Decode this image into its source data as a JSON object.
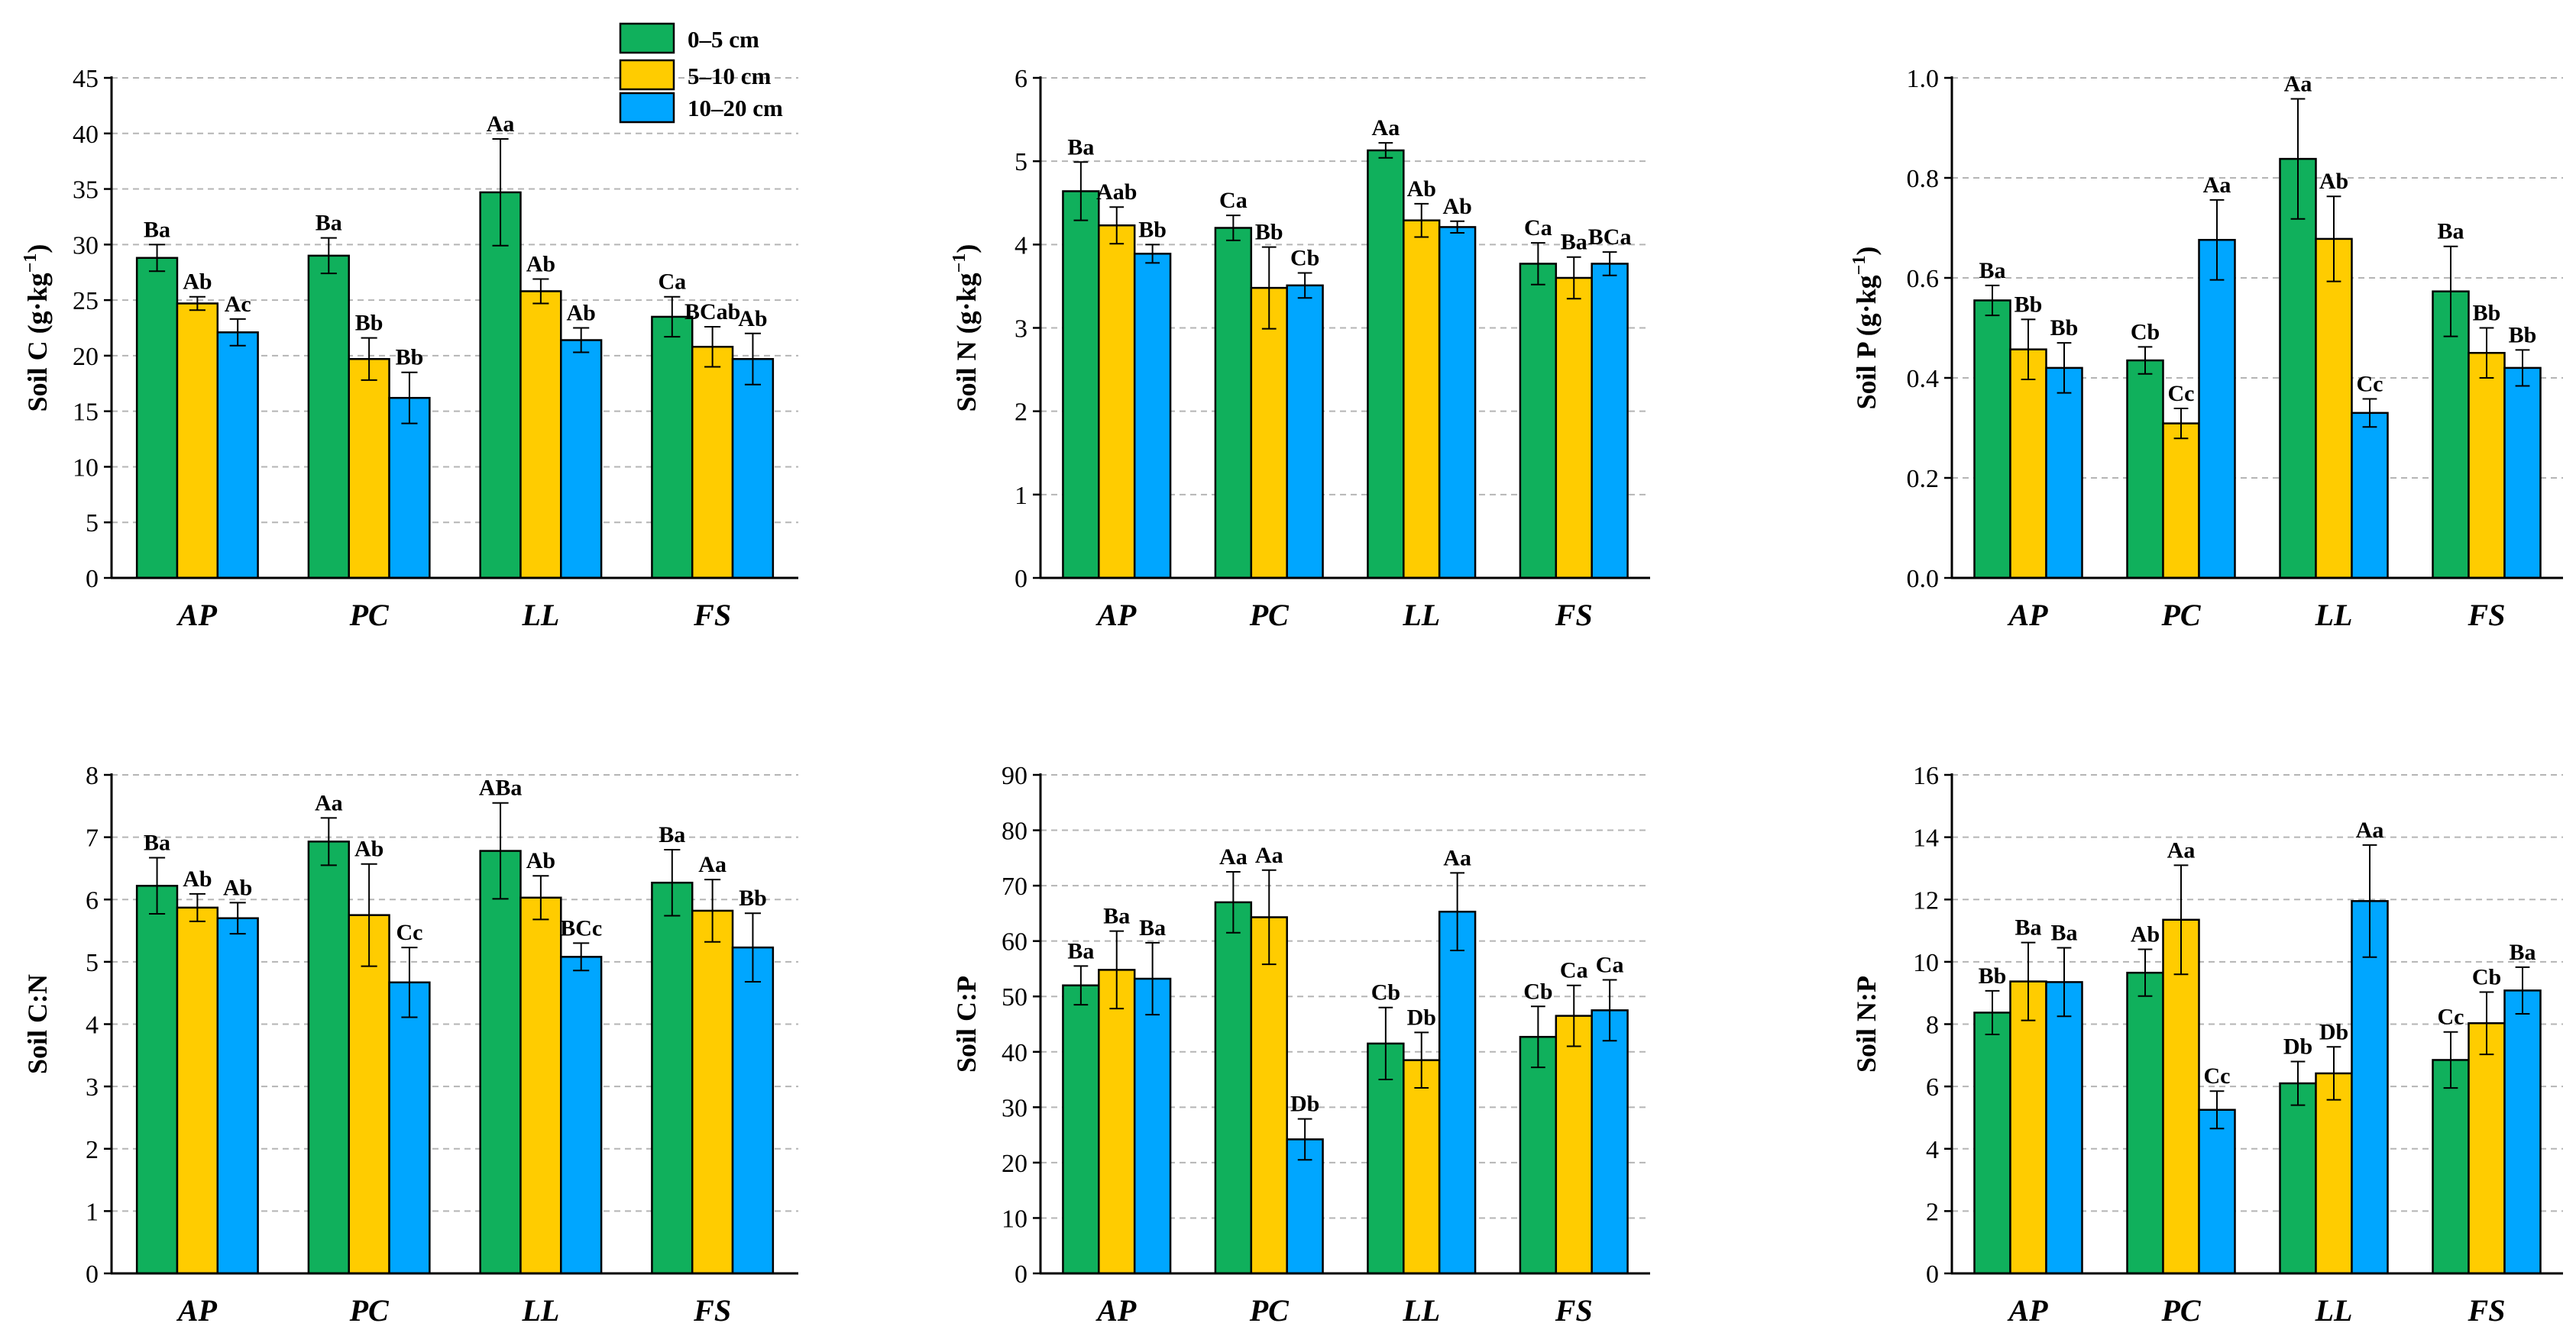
{
  "legend": [
    {
      "label": "0–5 cm",
      "color": "#10B05C"
    },
    {
      "label": "5–10 cm",
      "color": "#FFCC00"
    },
    {
      "label": "10–20 cm",
      "color": "#00A6FF"
    }
  ],
  "chart_data": [
    {
      "type": "bar",
      "ylabel_main": "Soil C (g·kg",
      "ylabel_sup": "−1",
      "ylabel_end": ")",
      "categories": [
        "AP",
        "PC",
        "LL",
        "FS"
      ],
      "ylim": [
        0,
        45
      ],
      "yticks": [
        0,
        5,
        10,
        15,
        20,
        25,
        30,
        35,
        40,
        45
      ],
      "tick_labels": [
        "0",
        "5",
        "10",
        "15",
        "20",
        "25",
        "30",
        "35",
        "40",
        "45"
      ],
      "series": [
        {
          "name": "0–5 cm",
          "values": [
            28.8,
            29.0,
            34.7,
            23.5
          ],
          "errors": [
            1.2,
            1.6,
            4.8,
            1.8
          ],
          "labels": [
            "Ba",
            "Ba",
            "Aa",
            "Ca"
          ]
        },
        {
          "name": "5–10 cm",
          "values": [
            24.7,
            19.7,
            25.8,
            20.8
          ],
          "errors": [
            0.6,
            1.9,
            1.1,
            1.8
          ],
          "labels": [
            "Ab",
            "Bb",
            "Ab",
            "BCab"
          ]
        },
        {
          "name": "10–20 cm",
          "values": [
            22.1,
            16.2,
            21.4,
            19.7
          ],
          "errors": [
            1.2,
            2.3,
            1.1,
            2.3
          ],
          "labels": [
            "Ac",
            "Bb",
            "Ab",
            "Ab"
          ]
        }
      ]
    },
    {
      "type": "bar",
      "ylabel_main": "Soil N (g·kg",
      "ylabel_sup": "−1",
      "ylabel_end": ")",
      "categories": [
        "AP",
        "PC",
        "LL",
        "FS"
      ],
      "ylim": [
        0,
        6
      ],
      "yticks": [
        0,
        1,
        2,
        3,
        4,
        5,
        6
      ],
      "tick_labels": [
        "0",
        "1",
        "2",
        "3",
        "4",
        "5",
        "6"
      ],
      "series": [
        {
          "name": "0–5 cm",
          "values": [
            4.64,
            4.2,
            5.13,
            3.77
          ],
          "errors": [
            0.35,
            0.15,
            0.09,
            0.25
          ],
          "labels": [
            "Ba",
            "Ca",
            "Aa",
            "Ca"
          ]
        },
        {
          "name": "5–10 cm",
          "values": [
            4.23,
            3.48,
            4.29,
            3.6
          ],
          "errors": [
            0.22,
            0.49,
            0.2,
            0.25
          ],
          "labels": [
            "Aab",
            "Bb",
            "Ab",
            "Ba"
          ]
        },
        {
          "name": "10–20 cm",
          "values": [
            3.89,
            3.51,
            4.21,
            3.77
          ],
          "errors": [
            0.11,
            0.15,
            0.07,
            0.14
          ],
          "labels": [
            "Bb",
            "Cb",
            "Ab",
            "BCa"
          ]
        }
      ]
    },
    {
      "type": "bar",
      "ylabel_main": "Soil P (g·kg",
      "ylabel_sup": "−1",
      "ylabel_end": ")",
      "categories": [
        "AP",
        "PC",
        "LL",
        "FS"
      ],
      "ylim": [
        0,
        1.0
      ],
      "yticks": [
        0,
        0.2,
        0.4,
        0.6,
        0.8,
        1.0
      ],
      "tick_labels": [
        "0.0",
        "0.2",
        "0.4",
        "0.6",
        "0.8",
        "1.0"
      ],
      "series": [
        {
          "name": "0–5 cm",
          "values": [
            0.555,
            0.435,
            0.838,
            0.573
          ],
          "errors": [
            0.03,
            0.027,
            0.12,
            0.09
          ],
          "labels": [
            "Ba",
            "Cb",
            "Aa",
            "Ba"
          ]
        },
        {
          "name": "5–10 cm",
          "values": [
            0.457,
            0.309,
            0.678,
            0.45
          ],
          "errors": [
            0.06,
            0.03,
            0.085,
            0.05
          ],
          "labels": [
            "Bb",
            "Cc",
            "Ab",
            "Bb"
          ]
        },
        {
          "name": "10–20 cm",
          "values": [
            0.42,
            0.676,
            0.33,
            0.42
          ],
          "errors": [
            0.05,
            0.08,
            0.028,
            0.036
          ],
          "labels": [
            "Bb",
            "Aa",
            "Cc",
            "Bb"
          ]
        }
      ]
    },
    {
      "type": "bar",
      "ylabel_main": "Soil C:N",
      "ylabel_sup": "",
      "ylabel_end": "",
      "categories": [
        "AP",
        "PC",
        "LL",
        "FS"
      ],
      "ylim": [
        0,
        8
      ],
      "yticks": [
        0,
        1,
        2,
        3,
        4,
        5,
        6,
        7,
        8
      ],
      "tick_labels": [
        "0",
        "1",
        "2",
        "3",
        "4",
        "5",
        "6",
        "7",
        "8"
      ],
      "series": [
        {
          "name": "0–5 cm",
          "values": [
            6.22,
            6.93,
            6.78,
            6.27
          ],
          "errors": [
            0.45,
            0.38,
            0.77,
            0.53
          ],
          "labels": [
            "Ba",
            "Aa",
            "ABa",
            "Ba"
          ]
        },
        {
          "name": "5–10 cm",
          "values": [
            5.87,
            5.75,
            6.03,
            5.82
          ],
          "errors": [
            0.22,
            0.82,
            0.35,
            0.5
          ],
          "labels": [
            "Ab",
            "Ab",
            "Ab",
            "Aa"
          ]
        },
        {
          "name": "10–20 cm",
          "values": [
            5.7,
            4.67,
            5.08,
            5.23
          ],
          "errors": [
            0.25,
            0.56,
            0.22,
            0.55
          ],
          "labels": [
            "Ab",
            "Cc",
            "BCc",
            "Bb"
          ]
        }
      ]
    },
    {
      "type": "bar",
      "ylabel_main": "Soil C:P",
      "ylabel_sup": "",
      "ylabel_end": "",
      "categories": [
        "AP",
        "PC",
        "LL",
        "FS"
      ],
      "ylim": [
        0,
        90
      ],
      "yticks": [
        0,
        10,
        20,
        30,
        40,
        50,
        60,
        70,
        80,
        90
      ],
      "tick_labels": [
        "0",
        "10",
        "20",
        "30",
        "40",
        "50",
        "60",
        "70",
        "80",
        "90"
      ],
      "series": [
        {
          "name": "0–5 cm",
          "values": [
            52.0,
            67.0,
            41.5,
            42.7
          ],
          "errors": [
            3.5,
            5.5,
            6.5,
            5.5
          ],
          "labels": [
            "Ba",
            "Aa",
            "Cb",
            "Cb"
          ]
        },
        {
          "name": "5–10 cm",
          "values": [
            54.8,
            64.3,
            38.5,
            46.5
          ],
          "errors": [
            7.0,
            8.5,
            5.0,
            5.5
          ],
          "labels": [
            "Ba",
            "Aa",
            "Db",
            "Ca"
          ]
        },
        {
          "name": "10–20 cm",
          "values": [
            53.2,
            24.2,
            65.3,
            47.5
          ],
          "errors": [
            6.5,
            3.7,
            7.0,
            5.5
          ],
          "labels": [
            "Ba",
            "Db",
            "Aa",
            "Ca"
          ]
        }
      ]
    },
    {
      "type": "bar",
      "ylabel_main": "Soil N:P",
      "ylabel_sup": "",
      "ylabel_end": "",
      "categories": [
        "AP",
        "PC",
        "LL",
        "FS"
      ],
      "ylim": [
        0,
        16
      ],
      "yticks": [
        0,
        2,
        4,
        6,
        8,
        10,
        12,
        14,
        16
      ],
      "tick_labels": [
        "0",
        "2",
        "4",
        "6",
        "8",
        "10",
        "12",
        "14",
        "16"
      ],
      "series": [
        {
          "name": "0–5 cm",
          "values": [
            8.37,
            9.65,
            6.1,
            6.85
          ],
          "errors": [
            0.7,
            0.75,
            0.7,
            0.9
          ],
          "labels": [
            "Bb",
            "Ab",
            "Db",
            "Cc"
          ]
        },
        {
          "name": "5–10 cm",
          "values": [
            9.37,
            11.35,
            6.42,
            8.03
          ],
          "errors": [
            1.25,
            1.75,
            0.85,
            1.0
          ],
          "labels": [
            "Ba",
            "Aa",
            "Db",
            "Cb"
          ]
        },
        {
          "name": "10–20 cm",
          "values": [
            9.35,
            5.25,
            11.95,
            9.08
          ],
          "errors": [
            1.1,
            0.6,
            1.8,
            0.75
          ],
          "labels": [
            "Ba",
            "Cc",
            "Aa",
            "Ba"
          ]
        }
      ]
    }
  ]
}
